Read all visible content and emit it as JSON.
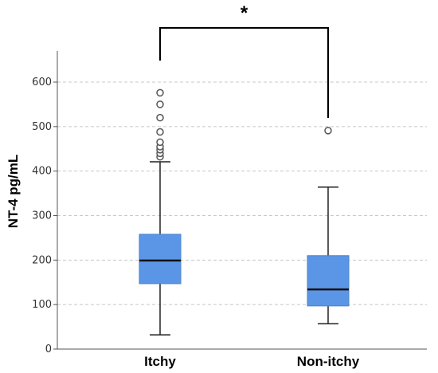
{
  "chart_data": {
    "type": "boxplot",
    "ylabel": "NT-4 pg/mL",
    "ylim": [
      0,
      650
    ],
    "yticks": [
      0,
      100,
      200,
      300,
      400,
      500,
      600
    ],
    "grid": "horizontal dashed",
    "box_color": "#5b96e6",
    "categories": [
      "Itchy",
      "Non-itchy"
    ],
    "boxes": [
      {
        "category": "Itchy",
        "whisker_low": 32,
        "q1": 147,
        "median": 199,
        "q3": 258,
        "whisker_high": 421,
        "outliers": [
          432,
          440,
          448,
          455,
          465,
          488,
          520,
          550,
          576
        ]
      },
      {
        "category": "Non-itchy",
        "whisker_low": 57,
        "q1": 97,
        "median": 134,
        "q3": 210,
        "whisker_high": 364,
        "outliers": [
          491
        ]
      }
    ],
    "significance": {
      "label": "*",
      "between": [
        "Itchy",
        "Non-itchy"
      ]
    }
  }
}
